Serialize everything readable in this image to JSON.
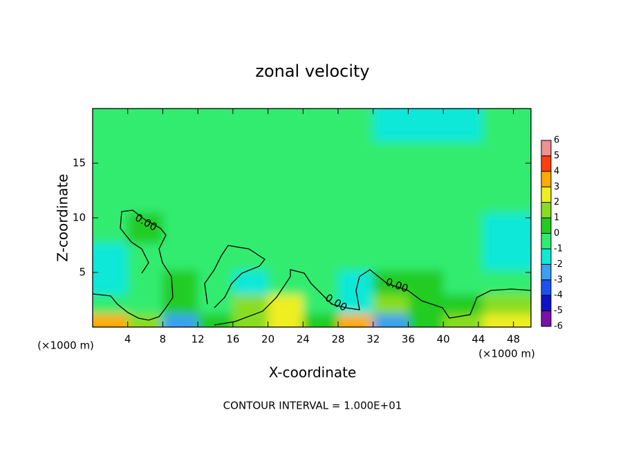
{
  "chart_data": {
    "type": "contour",
    "title": "zonal velocity",
    "x_label": "X-coordinate",
    "y_label": "Z-coordinate",
    "x_unit": "(×1000 m)",
    "footer": "CONTOUR INTERVAL = 1.000E+01",
    "contour_labels": [
      "0.00",
      "0.00",
      "0.00"
    ],
    "xlim": [
      0,
      50
    ],
    "ylim": [
      0,
      20
    ],
    "xticks": [
      4,
      8,
      12,
      16,
      20,
      24,
      28,
      32,
      36,
      40,
      44,
      48
    ],
    "yticks": [
      5,
      10,
      15
    ],
    "x": [
      2,
      6,
      10,
      14,
      18,
      22,
      26,
      30,
      34,
      38,
      42,
      47
    ],
    "y": [
      0.5,
      2,
      4,
      6.5,
      9,
      12,
      15.5,
      18.5
    ],
    "z": [
      [
        3,
        1,
        -3,
        0,
        1,
        2,
        0,
        3,
        -3,
        0,
        1,
        2
      ],
      [
        -1,
        -1,
        0,
        -1,
        1,
        2,
        -0.5,
        -2,
        1,
        0.5,
        0,
        1
      ],
      [
        -2,
        -1,
        0,
        -0.5,
        -2,
        -1,
        -0.5,
        -2,
        0.5,
        0,
        -0.5,
        -0.5
      ],
      [
        -2,
        -1,
        -0.5,
        -0.5,
        -0.5,
        -0.5,
        -1,
        -0.5,
        -0.5,
        -0.5,
        -1,
        -2
      ],
      [
        -0.5,
        0.5,
        -0.5,
        -0.5,
        -0.5,
        -0.5,
        -0.5,
        -0.5,
        -0.5,
        -0.5,
        -0.5,
        -1.5
      ],
      [
        -0.5,
        -0.5,
        -0.5,
        -0.5,
        -0.5,
        -0.5,
        -0.5,
        -0.5,
        -0.5,
        -0.5,
        -0.5,
        -0.5
      ],
      [
        -0.5,
        -0.5,
        -0.5,
        -0.5,
        -0.5,
        -0.5,
        -0.5,
        -0.5,
        -0.5,
        -1,
        -1,
        -1
      ],
      [
        -0.5,
        -0.5,
        -0.5,
        -0.5,
        -0.5,
        -1,
        -1,
        -1,
        -1.5,
        -1.5,
        -1.5,
        -1
      ]
    ],
    "colorbar": {
      "ticks": [
        -6,
        -5,
        -4,
        -3,
        -2,
        -1,
        0,
        1,
        2,
        3,
        4,
        5,
        6
      ],
      "colors": [
        "#7a10a8",
        "#1010c8",
        "#1e50f0",
        "#3aa0f0",
        "#10e8d8",
        "#30ec70",
        "#22cc22",
        "#88dd22",
        "#eeee22",
        "#ffaa00",
        "#ff4010",
        "#f09090"
      ]
    }
  }
}
